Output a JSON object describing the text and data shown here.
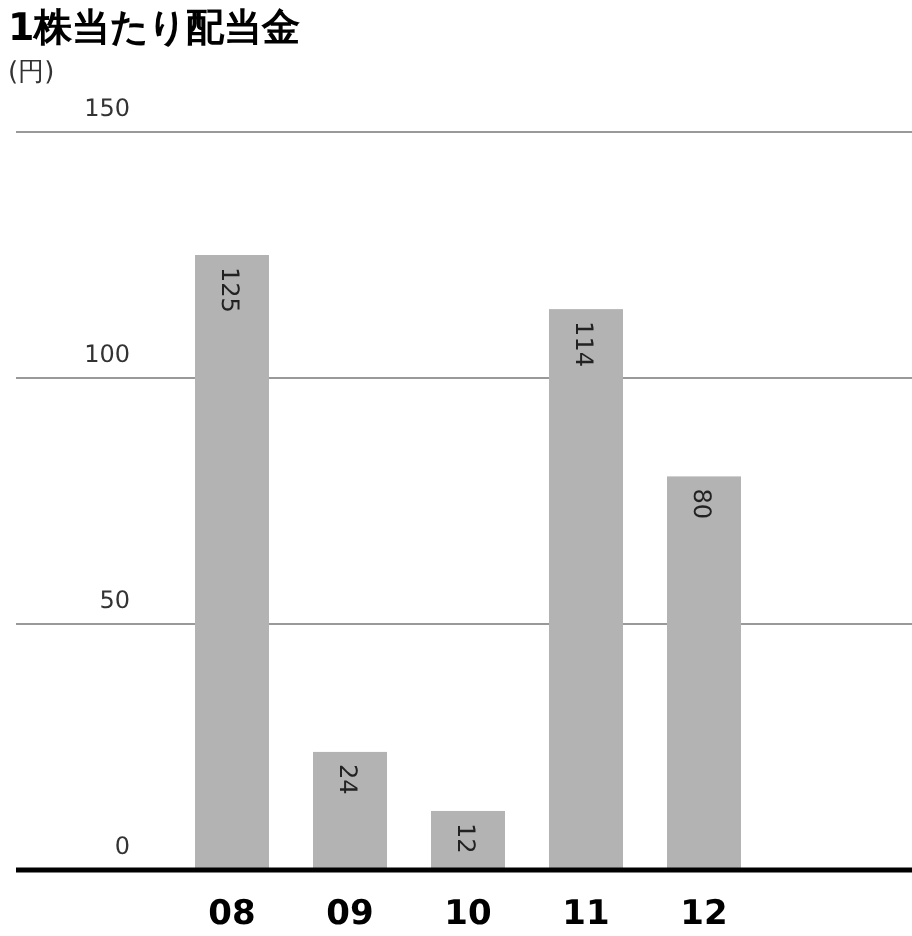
{
  "chart_data": {
    "type": "bar",
    "title": "1株当たり配当金",
    "ylabel": "(円)",
    "categories": [
      "08",
      "09",
      "10",
      "11",
      "12"
    ],
    "values": [
      125,
      24,
      12,
      114,
      80
    ],
    "color": "#b3b3b3",
    "ylim": [
      0,
      150
    ],
    "yticks": [
      0,
      50,
      100,
      150
    ],
    "grid": "y",
    "data_labels": true
  }
}
